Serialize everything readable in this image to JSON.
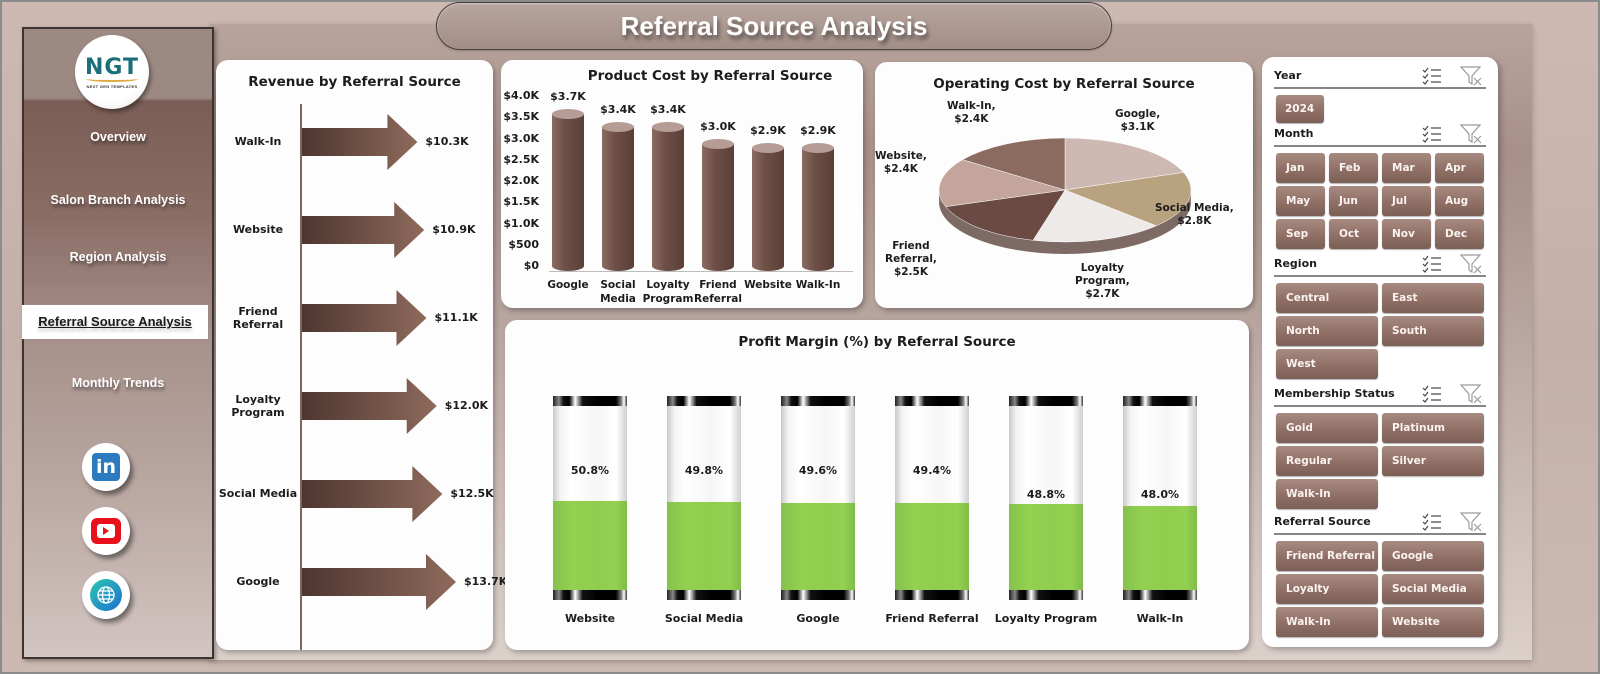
{
  "header": {
    "title": "Referral Source Analysis"
  },
  "logo": {
    "text": "NGT",
    "subtitle": "NEXT GEN TEMPLATES"
  },
  "sidebar": {
    "items": [
      {
        "label": "Overview",
        "active": false
      },
      {
        "label": "Salon Branch Analysis",
        "active": false
      },
      {
        "label": "Region Analysis",
        "active": false
      },
      {
        "label": "Referral Source Analysis",
        "active": true
      },
      {
        "label": "Monthly Trends",
        "active": false
      }
    ],
    "social": [
      {
        "name": "linkedin",
        "icon": "in"
      },
      {
        "name": "youtube",
        "icon": "play"
      },
      {
        "name": "website",
        "icon": "globe"
      }
    ]
  },
  "colors": {
    "brown_dark": "#5b3f37",
    "brown_mid": "#8e6e64",
    "green_fill": "#92d050",
    "pie_colors": [
      "#cdb8b2",
      "#b9a27f",
      "#efeaea",
      "#6a4a42",
      "#c4a59c",
      "#8b6a60"
    ]
  },
  "chart_data": [
    {
      "type": "bar",
      "orientation": "horizontal",
      "title": "Revenue by Referral Source",
      "categories": [
        "Walk-In",
        "Website",
        "Friend Referral",
        "Loyalty Program",
        "Social Media",
        "Google"
      ],
      "values": [
        10300,
        10900,
        11100,
        12000,
        12500,
        13700
      ],
      "labels": [
        "$10.3K",
        "$10.9K",
        "$11.1K",
        "$12.0K",
        "$12.5K",
        "$13.7K"
      ],
      "xlabel": "",
      "ylabel": ""
    },
    {
      "type": "bar",
      "title": "Product Cost by Referral Source",
      "categories": [
        "Google",
        "Social Media",
        "Loyalty Program",
        "Friend Referral",
        "Website",
        "Walk-In"
      ],
      "category_lines": [
        [
          "Google"
        ],
        [
          "Social",
          "Media"
        ],
        [
          "Loyalty",
          "Program"
        ],
        [
          "Friend",
          "Referral"
        ],
        [
          "Website"
        ],
        [
          "Walk-In"
        ]
      ],
      "values": [
        3700,
        3400,
        3400,
        3000,
        2900,
        2900
      ],
      "labels": [
        "$3.7K",
        "$3.4K",
        "$3.4K",
        "$3.0K",
        "$2.9K",
        "$2.9K"
      ],
      "yticks": [
        "$4.0K",
        "$3.5K",
        "$3.0K",
        "$2.5K",
        "$2.0K",
        "$1.5K",
        "$1.0K",
        "$500",
        "$0"
      ],
      "ylim": [
        0,
        4000
      ]
    },
    {
      "type": "pie",
      "title": "Operating Cost by Referral Source",
      "categories": [
        "Google",
        "Social Media",
        "Loyalty Program",
        "Friend Referral",
        "Website",
        "Walk-In"
      ],
      "values": [
        3100,
        2800,
        2700,
        2500,
        2400,
        2400
      ],
      "labels": [
        [
          "Google,",
          "$3.1K"
        ],
        [
          "Social Media,",
          "$2.8K"
        ],
        [
          "Loyalty",
          "Program,",
          "$2.7K"
        ],
        [
          "Friend",
          "Referral,",
          "$2.5K"
        ],
        [
          "Website,",
          "$2.4K"
        ],
        [
          "Walk-In,",
          "$2.4K"
        ]
      ]
    },
    {
      "type": "bar",
      "title": "Profit Margin (%) by Referral Source",
      "categories": [
        "Website",
        "Social Media",
        "Google",
        "Friend Referral",
        "Loyalty Program",
        "Walk-In"
      ],
      "values": [
        50.8,
        49.8,
        49.6,
        49.4,
        48.8,
        48.0
      ],
      "labels": [
        "50.8%",
        "49.8%",
        "49.6%",
        "49.4%",
        "48.8%",
        "48.0%"
      ],
      "ylim": [
        0,
        100
      ]
    }
  ],
  "slicers": [
    {
      "title": "Year",
      "options": [
        "2024"
      ]
    },
    {
      "title": "Month",
      "options": [
        "Jan",
        "Feb",
        "Mar",
        "Apr",
        "May",
        "Jun",
        "Jul",
        "Aug",
        "Sep",
        "Oct",
        "Nov",
        "Dec"
      ]
    },
    {
      "title": "Region",
      "options": [
        "Central",
        "East",
        "North",
        "South",
        "West"
      ]
    },
    {
      "title": "Membership Status",
      "options": [
        "Gold",
        "Platinum",
        "Regular",
        "Silver",
        "Walk-In"
      ]
    },
    {
      "title": "Referral Source",
      "options": [
        "Friend Referral",
        "Google",
        "Loyalty Program",
        "Social Media",
        "Walk-In",
        "Website"
      ]
    }
  ]
}
